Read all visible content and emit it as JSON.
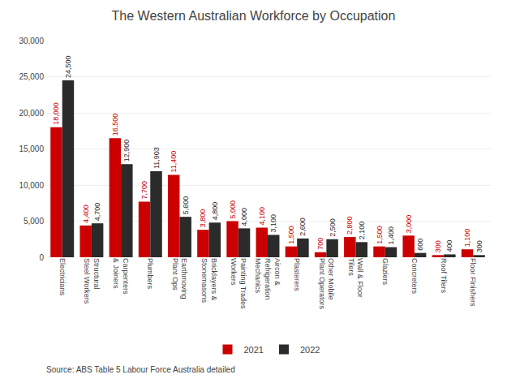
{
  "chart_data": {
    "type": "bar",
    "title": "The Western Australian Workforce by Occupation",
    "categories": [
      "Electricians",
      "Structural\nSteel Workers",
      "Carpenters\n& Joiners",
      "Plumbers",
      "Earthmoving\nPlant Ops",
      "Bricklayers &\nStonemasons",
      "Painting Trades\nWorkers",
      "Aircon &\nRefrigeration\nMechanics",
      "Plasterers",
      "Other Mobile\nPlant Operators",
      "Wall & Floor\nTilers",
      "Glaziers",
      "Concreters",
      "Roof Tilers",
      "Floor Finishers"
    ],
    "series": [
      {
        "name": "2021",
        "color": "#cc0000",
        "values": [
          18000,
          4400,
          16500,
          7700,
          11400,
          3800,
          5000,
          4100,
          1500,
          700,
          2800,
          1500,
          3000,
          300,
          1100
        ],
        "value_labels": [
          "18,000",
          "4,400",
          "16,500",
          "7,700",
          "11,400",
          "3,800",
          "5,000",
          "4,100",
          "1,500",
          "700",
          "2,800",
          "1,500",
          "3,000",
          "300",
          "1,100"
        ]
      },
      {
        "name": "2022",
        "color": "#2b2b2b",
        "values": [
          24500,
          4700,
          12900,
          11903,
          5600,
          4800,
          4000,
          3100,
          2600,
          2500,
          2100,
          1400,
          600,
          400,
          300
        ],
        "value_labels": [
          "24,500",
          "4,700",
          "12,900",
          "11,903",
          "5,600",
          "4,800",
          "4,000",
          "3,100",
          "2,600",
          "2,500",
          "2,100",
          "1,400",
          "600",
          "400",
          "300"
        ]
      }
    ],
    "ylim": [
      0,
      30000
    ],
    "yticks": [
      0,
      {
        "value": 5000,
        "label": "5,000"
      },
      {
        "value": 10000,
        "label": "10,000"
      },
      {
        "value": 15000,
        "label": "15,000"
      },
      {
        "value": 20000,
        "label": "20,000"
      },
      {
        "value": 25000,
        "label": "25,000"
      },
      {
        "value": 30000,
        "label": "30,000"
      }
    ],
    "grid": true,
    "legend": "bottom",
    "data_labels": true,
    "annotations": [
      "Source: ABS Table 5 Labour Force Australia detailed"
    ]
  }
}
